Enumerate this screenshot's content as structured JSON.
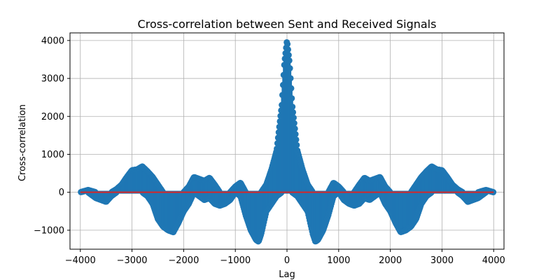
{
  "chart_data": {
    "type": "stem",
    "title": "Cross-correlation between Sent and Received Signals",
    "xlabel": "Lag",
    "ylabel": "Cross-correlation",
    "xlim": [
      -4200,
      4200
    ],
    "ylim": [
      -1500,
      4200
    ],
    "xticks": [
      -4000,
      -3000,
      -2000,
      -1000,
      0,
      1000,
      2000,
      3000,
      4000
    ],
    "yticks": [
      -1000,
      0,
      1000,
      2000,
      3000,
      4000
    ],
    "grid": true,
    "baseline": 0,
    "colors": {
      "stem": "#1f77b4",
      "baseline": "#d62728",
      "grid": "#b0b0b0"
    },
    "envelope": {
      "lag": [
        -4000,
        -3850,
        -3700,
        -3600,
        -3500,
        -3400,
        -3300,
        -3200,
        -3100,
        -3000,
        -2900,
        -2800,
        -2700,
        -2600,
        -2500,
        -2400,
        -2300,
        -2200,
        -2100,
        -2000,
        -1900,
        -1800,
        -1700,
        -1600,
        -1500,
        -1400,
        -1300,
        -1200,
        -1100,
        -1000,
        -900,
        -800,
        -700,
        -600,
        -550,
        -500,
        -400,
        -300,
        -200,
        -100,
        -50,
        0,
        50,
        100,
        200,
        300,
        400,
        500,
        550,
        600,
        700,
        800,
        900,
        1000,
        1100,
        1200,
        1300,
        1400,
        1500,
        1600,
        1700,
        1800,
        1900,
        2000,
        2100,
        2200,
        2300,
        2400,
        2500,
        2600,
        2700,
        2800,
        2900,
        3000,
        3100,
        3200,
        3300,
        3400,
        3500,
        3600,
        3700,
        3850,
        4000
      ],
      "upper": [
        0,
        60,
        0,
        0,
        0,
        0,
        80,
        200,
        400,
        580,
        600,
        680,
        550,
        400,
        200,
        0,
        0,
        0,
        0,
        0,
        150,
        400,
        350,
        300,
        380,
        200,
        0,
        0,
        0,
        150,
        250,
        0,
        0,
        0,
        0,
        0,
        200,
        600,
        1100,
        2300,
        3400,
        4000,
        3400,
        2300,
        1100,
        600,
        200,
        0,
        0,
        0,
        0,
        0,
        250,
        150,
        0,
        0,
        0,
        200,
        380,
        300,
        350,
        400,
        150,
        0,
        0,
        0,
        0,
        0,
        200,
        400,
        550,
        680,
        600,
        580,
        400,
        200,
        80,
        0,
        0,
        0,
        0,
        60,
        0
      ],
      "lower": [
        0,
        0,
        -150,
        -200,
        -250,
        -100,
        0,
        0,
        0,
        0,
        0,
        0,
        -100,
        -300,
        -700,
        -900,
        -1000,
        -1050,
        -800,
        -500,
        -300,
        0,
        -100,
        -200,
        -150,
        -300,
        -350,
        -300,
        -200,
        0,
        -100,
        -600,
        -1000,
        -1250,
        -1300,
        -1100,
        -500,
        -300,
        -100,
        0,
        0,
        0,
        0,
        0,
        -100,
        -300,
        -500,
        -1100,
        -1300,
        -1250,
        -1000,
        -600,
        -100,
        0,
        -200,
        -300,
        -350,
        -300,
        -150,
        -200,
        -100,
        0,
        -300,
        -500,
        -800,
        -1050,
        -1000,
        -900,
        -700,
        -300,
        -100,
        0,
        0,
        0,
        0,
        0,
        0,
        -100,
        -250,
        -200,
        -150,
        0,
        0
      ]
    }
  }
}
